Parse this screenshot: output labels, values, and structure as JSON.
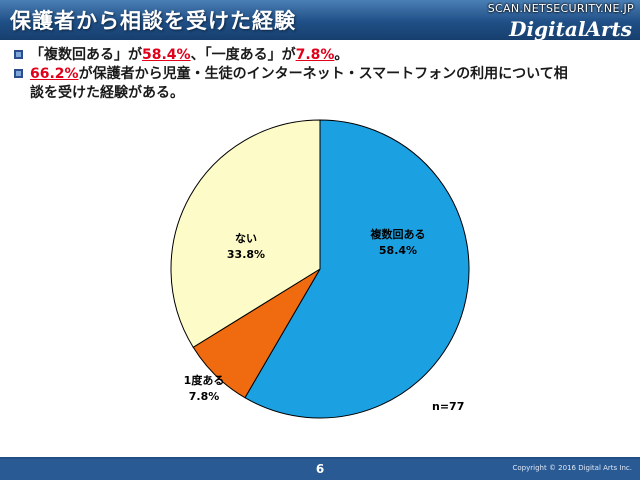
{
  "header": {
    "title": "保護者から相談を受けた経験",
    "watermark": "SCAN.NETSECURITY.NE.JP",
    "logo": "DigitalArts"
  },
  "bullets": [
    {
      "parts": [
        {
          "text": "「複数回ある」が",
          "hl": false
        },
        {
          "text": "58.4%",
          "hl": true
        },
        {
          "text": "、「一度ある」が",
          "hl": false
        },
        {
          "text": "7.8%",
          "hl": true
        },
        {
          "text": "。",
          "hl": false
        }
      ]
    },
    {
      "parts": [
        {
          "text": "66.2%",
          "hl": true
        },
        {
          "text": "が保護者から児童・生徒のインターネット・スマートフォンの利用について相",
          "hl": false
        }
      ],
      "continuation": "談を受けた経験がある。"
    }
  ],
  "chart_data": {
    "type": "pie",
    "slices": [
      {
        "label": "複数回ある",
        "value": 58.4,
        "value_label": "58.4%",
        "color": "#1ba1e2"
      },
      {
        "label": "1度ある",
        "value": 7.8,
        "value_label": "7.8%",
        "color": "#f06a0f"
      },
      {
        "label": "ない",
        "value": 33.8,
        "value_label": "33.8%",
        "color": "#fdfcc8"
      }
    ],
    "start": "12 o'clock",
    "direction": "clockwise",
    "note": "n=77",
    "stroke_color": "#000000"
  },
  "footer": {
    "page_number": "6",
    "copyright": "Copyright © 2016 Digital Arts Inc."
  }
}
